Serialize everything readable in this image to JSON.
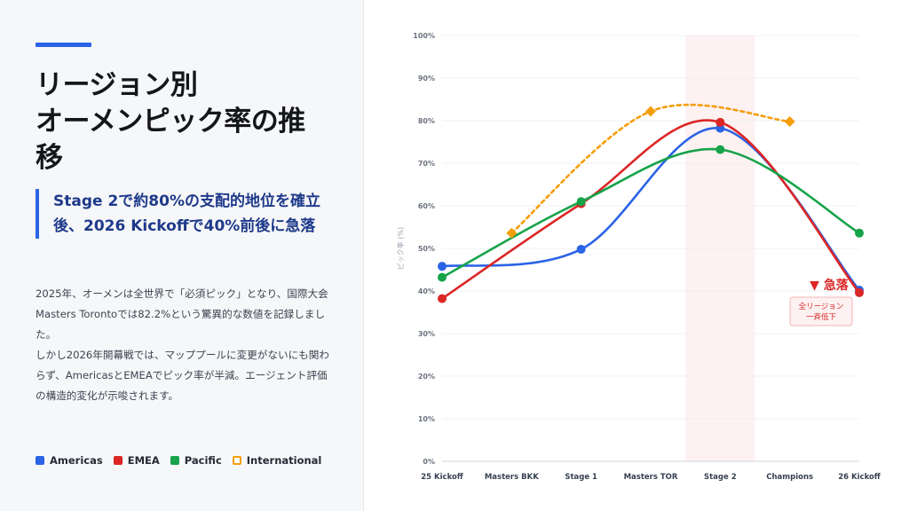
{
  "title_lines": [
    "リージョン別",
    "オーメンピック率の推",
    "移"
  ],
  "callout": "Stage 2で約80%の支配的地位を確立後、2026 Kickoffで40%前後に急落",
  "body_paragraphs": [
    "2025年、オーメンは全世界で「必須ピック」となり、国際大会Masters Torontoでは82.2%という驚異的な数値を記録しました。",
    "しかし2026年開幕戦では、マッププールに変更がないにも関わらず、AmericasとEMEAでピック率が半減。エージェント評価の構造的変化が示唆されます。"
  ],
  "legend": [
    {
      "label": "Americas",
      "color": "#2b63e6",
      "style": "solid"
    },
    {
      "label": "EMEA",
      "color": "#dc2626",
      "style": "solid"
    },
    {
      "label": "Pacific",
      "color": "#16a34a",
      "style": "solid"
    },
    {
      "label": "International",
      "color": "#f59e0b",
      "style": "outline"
    }
  ],
  "chart_data": {
    "type": "line",
    "categories": [
      "25 Kickoff",
      "Masters BKK",
      "Stage 1",
      "Masters TOR",
      "Stage 2",
      "Champions",
      "26 Kickoff"
    ],
    "ylabel": "ピック率 (%)",
    "ylim": [
      0,
      100
    ],
    "yticks": [
      "0%",
      "10%",
      "20%",
      "30%",
      "40%",
      "50%",
      "60%",
      "70%",
      "80%",
      "90%",
      "100%"
    ],
    "highlight_category": "Stage 2",
    "series": [
      {
        "name": "Americas",
        "color": "#2b63e6",
        "dashed": false,
        "marker": "circle",
        "values": [
          45.8,
          null,
          49.8,
          null,
          78.2,
          null,
          40.2
        ]
      },
      {
        "name": "EMEA",
        "color": "#dc2626",
        "dashed": false,
        "marker": "circle",
        "values": [
          38.2,
          null,
          60.5,
          null,
          79.6,
          null,
          39.6
        ]
      },
      {
        "name": "Pacific",
        "color": "#16a34a",
        "dashed": false,
        "marker": "circle",
        "values": [
          43.2,
          null,
          61.0,
          null,
          73.2,
          null,
          53.6
        ]
      },
      {
        "name": "International",
        "color": "#f59e0b",
        "dashed": true,
        "marker": "diamond",
        "values": [
          null,
          53.6,
          null,
          82.2,
          null,
          79.8,
          null
        ]
      }
    ],
    "annotation": {
      "label": "▼ 急落",
      "note_lines": [
        "全リージョン",
        "一斉低下"
      ],
      "category": "26 Kickoff"
    }
  }
}
